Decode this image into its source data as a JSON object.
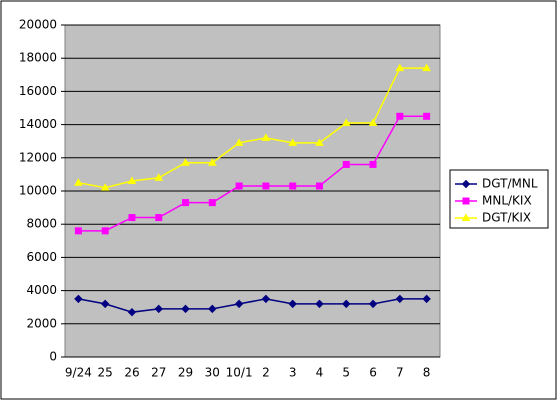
{
  "chart_data": {
    "type": "line",
    "categories": [
      "9/24",
      "25",
      "26",
      "27",
      "29",
      "30",
      "10/1",
      "2",
      "3",
      "4",
      "5",
      "6",
      "7",
      "8"
    ],
    "series": [
      {
        "name": "DGT/MNL",
        "color": "#000080",
        "marker": "diamond",
        "values": [
          3500,
          3200,
          2700,
          2900,
          2900,
          2900,
          3200,
          3500,
          3200,
          3200,
          3200,
          3200,
          3500,
          3500
        ]
      },
      {
        "name": "MNL/KIX",
        "color": "#ff00ff",
        "marker": "square",
        "values": [
          7600,
          7600,
          8400,
          8400,
          9300,
          9300,
          10300,
          10300,
          10300,
          10300,
          11600,
          11600,
          14500,
          14500
        ]
      },
      {
        "name": "DGT/KIX",
        "color": "#ffff00",
        "marker": "triangle",
        "values": [
          10500,
          10200,
          10600,
          10800,
          11700,
          11700,
          12900,
          13200,
          12900,
          12900,
          14100,
          14100,
          17400,
          17400
        ]
      }
    ],
    "ylim": [
      0,
      20000
    ],
    "yticks": [
      0,
      2000,
      4000,
      6000,
      8000,
      10000,
      12000,
      14000,
      16000,
      18000,
      20000
    ],
    "grid": true,
    "legend": "right"
  }
}
